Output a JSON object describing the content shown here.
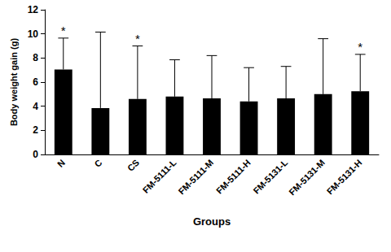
{
  "chart_data": {
    "type": "bar",
    "x_label": "Groups",
    "y_label": "Body weight gain (g)",
    "categories": [
      "N",
      "C",
      "CS",
      "FM-5111-L",
      "FM-5111-M",
      "FM-5111-H",
      "FM-5131-L",
      "FM-5131-M",
      "FM-5131-H"
    ],
    "values": [
      7.05,
      3.85,
      4.6,
      4.8,
      4.65,
      4.4,
      4.65,
      5.0,
      5.25
    ],
    "errors": [
      2.6,
      6.3,
      4.4,
      3.05,
      3.55,
      2.8,
      2.65,
      4.6,
      3.05
    ],
    "annotations": [
      "*",
      null,
      "*",
      null,
      null,
      null,
      null,
      null,
      "*"
    ],
    "color": "#000000",
    "ylim": [
      0,
      12
    ],
    "yticks": [
      0,
      2,
      4,
      6,
      8,
      10,
      12
    ],
    "grid": false
  }
}
